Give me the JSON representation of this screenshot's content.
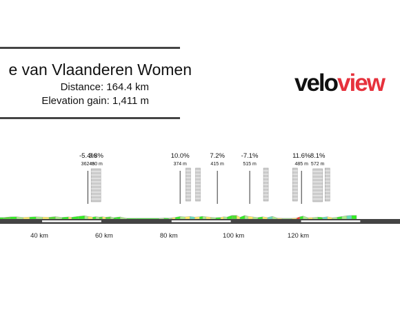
{
  "header": {
    "title": "e van Vlaanderen Women",
    "distance": "Distance: 164.4 km",
    "elevation_gain": "Elevation gain: 1,411 m"
  },
  "logo": {
    "part1": "velo",
    "part2": "view",
    "color_dark": "#111111",
    "color_red": "#e6313c"
  },
  "colors": {
    "green_bright": "#33ee22",
    "green_mid": "#55dd33",
    "green_light": "#aaee88",
    "yellow": "#ffee66",
    "teal": "#66ddbb",
    "red": "#ff3322",
    "baseline": "#444444",
    "cobble_box": "#cccccc"
  },
  "chart_data": {
    "type": "area",
    "title": "e van Vlaanderen Women",
    "xlabel": "",
    "ylabel": "",
    "xlim": [
      27,
      151
    ],
    "ylim": [
      0,
      600
    ],
    "x_ticks": [
      {
        "x": 40,
        "label": "40 km"
      },
      {
        "x": 60,
        "label": "60 km"
      },
      {
        "x": 80,
        "label": "80 km"
      },
      {
        "x": 100,
        "label": "100 km"
      },
      {
        "x": 120,
        "label": "120 km"
      }
    ],
    "segments": [
      {
        "x0": 27,
        "x1": 29,
        "y0": 20,
        "y1": 20,
        "color": "#33ee22"
      },
      {
        "x0": 29,
        "x1": 31,
        "y0": 20,
        "y1": 28,
        "color": "#55dd33"
      },
      {
        "x0": 31,
        "x1": 33,
        "y0": 28,
        "y1": 30,
        "color": "#33ee22"
      },
      {
        "x0": 33,
        "x1": 35,
        "y0": 30,
        "y1": 22,
        "color": "#aaee88"
      },
      {
        "x0": 35,
        "x1": 37,
        "y0": 22,
        "y1": 26,
        "color": "#ffee66"
      },
      {
        "x0": 37,
        "x1": 39,
        "y0": 26,
        "y1": 30,
        "color": "#33ee22"
      },
      {
        "x0": 39,
        "x1": 41,
        "y0": 30,
        "y1": 26,
        "color": "#aaee88"
      },
      {
        "x0": 41,
        "x1": 43,
        "y0": 26,
        "y1": 24,
        "color": "#ffee66"
      },
      {
        "x0": 43,
        "x1": 45,
        "y0": 24,
        "y1": 32,
        "color": "#55dd33"
      },
      {
        "x0": 45,
        "x1": 47,
        "y0": 32,
        "y1": 22,
        "color": "#aaee88"
      },
      {
        "x0": 47,
        "x1": 49,
        "y0": 22,
        "y1": 28,
        "color": "#33ee22"
      },
      {
        "x0": 49,
        "x1": 50,
        "y0": 28,
        "y1": 24,
        "color": "#ffee66"
      },
      {
        "x0": 50,
        "x1": 52,
        "y0": 24,
        "y1": 35,
        "color": "#33ee22"
      },
      {
        "x0": 52,
        "x1": 54,
        "y0": 35,
        "y1": 44,
        "color": "#33ee22"
      },
      {
        "x0": 54,
        "x1": 55,
        "y0": 44,
        "y1": 35,
        "color": "#aaee88"
      },
      {
        "x0": 55,
        "x1": 56.5,
        "y0": 35,
        "y1": 26,
        "color": "#ffee66"
      },
      {
        "x0": 56.5,
        "x1": 57.5,
        "y0": 26,
        "y1": 32,
        "color": "#33ee22"
      },
      {
        "x0": 57.5,
        "x1": 58.5,
        "y0": 32,
        "y1": 26,
        "color": "#aaee88"
      },
      {
        "x0": 58.5,
        "x1": 59.5,
        "y0": 26,
        "y1": 30,
        "color": "#55dd33"
      },
      {
        "x0": 59.5,
        "x1": 60.5,
        "y0": 30,
        "y1": 24,
        "color": "#ffee66"
      },
      {
        "x0": 60.5,
        "x1": 62,
        "y0": 24,
        "y1": 30,
        "color": "#55dd33"
      },
      {
        "x0": 62,
        "x1": 63,
        "y0": 30,
        "y1": 18,
        "color": "#aaee88"
      },
      {
        "x0": 63,
        "x1": 64,
        "y0": 18,
        "y1": 24,
        "color": "#33ee22"
      },
      {
        "x0": 64,
        "x1": 65,
        "y0": 24,
        "y1": 28,
        "color": "#33ee22"
      },
      {
        "x0": 65,
        "x1": 67,
        "y0": 28,
        "y1": 10,
        "color": "#aaee88"
      },
      {
        "x0": 67,
        "x1": 70,
        "y0": 10,
        "y1": 10,
        "color": "#33ee22"
      },
      {
        "x0": 70,
        "x1": 77,
        "y0": 10,
        "y1": 10,
        "color": "#33ee22"
      },
      {
        "x0": 77,
        "x1": 78.5,
        "y0": 10,
        "y1": 14,
        "color": "#aaee88"
      },
      {
        "x0": 78.5,
        "x1": 80,
        "y0": 14,
        "y1": 12,
        "color": "#33ee22"
      },
      {
        "x0": 80,
        "x1": 81,
        "y0": 12,
        "y1": 18,
        "color": "#aaee88"
      },
      {
        "x0": 81,
        "x1": 82,
        "y0": 18,
        "y1": 22,
        "color": "#ffee66"
      },
      {
        "x0": 82,
        "x1": 83.5,
        "y0": 22,
        "y1": 34,
        "color": "#33ee22"
      },
      {
        "x0": 83.5,
        "x1": 85,
        "y0": 34,
        "y1": 28,
        "color": "#aaee88"
      },
      {
        "x0": 85,
        "x1": 86.5,
        "y0": 28,
        "y1": 34,
        "color": "#ffee66"
      },
      {
        "x0": 86.5,
        "x1": 88,
        "y0": 34,
        "y1": 26,
        "color": "#66ddbb"
      },
      {
        "x0": 88,
        "x1": 89.5,
        "y0": 26,
        "y1": 30,
        "color": "#ffee66"
      },
      {
        "x0": 89.5,
        "x1": 90.5,
        "y0": 30,
        "y1": 36,
        "color": "#33ee22"
      },
      {
        "x0": 90.5,
        "x1": 91.5,
        "y0": 36,
        "y1": 30,
        "color": "#aaee88"
      },
      {
        "x0": 91.5,
        "x1": 93,
        "y0": 30,
        "y1": 24,
        "color": "#ffee66"
      },
      {
        "x0": 93,
        "x1": 94.5,
        "y0": 24,
        "y1": 18,
        "color": "#aaee88"
      },
      {
        "x0": 94.5,
        "x1": 96,
        "y0": 18,
        "y1": 22,
        "color": "#33ee22"
      },
      {
        "x0": 96,
        "x1": 97,
        "y0": 22,
        "y1": 30,
        "color": "#ffee66"
      },
      {
        "x0": 97,
        "x1": 98,
        "y0": 30,
        "y1": 26,
        "color": "#aaee88"
      },
      {
        "x0": 98,
        "x1": 99.5,
        "y0": 26,
        "y1": 48,
        "color": "#33ee22"
      },
      {
        "x0": 99.5,
        "x1": 101,
        "y0": 48,
        "y1": 48,
        "color": "#55dd33"
      },
      {
        "x0": 101,
        "x1": 102,
        "y0": 48,
        "y1": 24,
        "color": "#ffee66"
      },
      {
        "x0": 102,
        "x1": 103.5,
        "y0": 24,
        "y1": 48,
        "color": "#33ee22"
      },
      {
        "x0": 103.5,
        "x1": 104.5,
        "y0": 48,
        "y1": 36,
        "color": "#aaee88"
      },
      {
        "x0": 104.5,
        "x1": 106,
        "y0": 36,
        "y1": 28,
        "color": "#ffee66"
      },
      {
        "x0": 106,
        "x1": 107.5,
        "y0": 28,
        "y1": 20,
        "color": "#aaee88"
      },
      {
        "x0": 107.5,
        "x1": 109,
        "y0": 20,
        "y1": 30,
        "color": "#33ee22"
      },
      {
        "x0": 109,
        "x1": 110.5,
        "y0": 30,
        "y1": 20,
        "color": "#ffee66"
      },
      {
        "x0": 110.5,
        "x1": 112,
        "y0": 20,
        "y1": 36,
        "color": "#66ddbb"
      },
      {
        "x0": 112,
        "x1": 113.5,
        "y0": 36,
        "y1": 14,
        "color": "#aaee88"
      },
      {
        "x0": 113.5,
        "x1": 115,
        "y0": 14,
        "y1": 10,
        "color": "#ffee66"
      },
      {
        "x0": 115,
        "x1": 118,
        "y0": 10,
        "y1": 10,
        "color": "#aaee88"
      },
      {
        "x0": 118,
        "x1": 119.5,
        "y0": 10,
        "y1": 14,
        "color": "#ffee66"
      },
      {
        "x0": 119.5,
        "x1": 120.5,
        "y0": 14,
        "y1": 30,
        "color": "#ff3322"
      },
      {
        "x0": 120.5,
        "x1": 121.5,
        "y0": 30,
        "y1": 40,
        "color": "#33ee22"
      },
      {
        "x0": 121.5,
        "x1": 123,
        "y0": 40,
        "y1": 18,
        "color": "#aaee88"
      },
      {
        "x0": 123,
        "x1": 124.5,
        "y0": 18,
        "y1": 20,
        "color": "#ffee66"
      },
      {
        "x0": 124.5,
        "x1": 126,
        "y0": 20,
        "y1": 26,
        "color": "#aaee88"
      },
      {
        "x0": 126,
        "x1": 127.5,
        "y0": 26,
        "y1": 22,
        "color": "#33ee22"
      },
      {
        "x0": 127.5,
        "x1": 129,
        "y0": 22,
        "y1": 30,
        "color": "#66ddbb"
      },
      {
        "x0": 129,
        "x1": 130.5,
        "y0": 30,
        "y1": 18,
        "color": "#ffee66"
      },
      {
        "x0": 130.5,
        "x1": 132,
        "y0": 18,
        "y1": 24,
        "color": "#aaee88"
      },
      {
        "x0": 132,
        "x1": 133.5,
        "y0": 24,
        "y1": 34,
        "color": "#33ee22"
      },
      {
        "x0": 133.5,
        "x1": 135,
        "y0": 34,
        "y1": 44,
        "color": "#aaee88"
      },
      {
        "x0": 135,
        "x1": 136.5,
        "y0": 44,
        "y1": 48,
        "color": "#66ddbb"
      },
      {
        "x0": 136.5,
        "x1": 138,
        "y0": 48,
        "y1": 48,
        "color": "#33ee22"
      }
    ],
    "annotations": [
      {
        "x": 55,
        "grade": "-5.4%",
        "elevation": "362 m",
        "line_top": 248,
        "cobbled": false
      },
      {
        "x": 57.5,
        "grade": "3.8%",
        "elevation": "430 m",
        "line_top": 248,
        "cobbled": true
      },
      {
        "x": 83.5,
        "grade": "10.0%",
        "elevation": "374 m",
        "line_top": 248,
        "cobbled": false
      },
      {
        "x": 86,
        "grade": "",
        "elevation": "",
        "line_top": 245,
        "cobbled": true
      },
      {
        "x": 89,
        "grade": "",
        "elevation": "",
        "line_top": 245,
        "cobbled": true
      },
      {
        "x": 95,
        "grade": "7.2%",
        "elevation": "415 m",
        "line_top": 248,
        "cobbled": false
      },
      {
        "x": 105,
        "grade": "-7.1%",
        "elevation": "515 m",
        "line_top": 248,
        "cobbled": false
      },
      {
        "x": 110,
        "grade": "",
        "elevation": "",
        "line_top": 245,
        "cobbled": true
      },
      {
        "x": 119,
        "grade": "",
        "elevation": "",
        "line_top": 245,
        "cobbled": true
      },
      {
        "x": 121,
        "grade": "11.6%",
        "elevation": "485 m",
        "line_top": 248,
        "cobbled": false
      },
      {
        "x": 126,
        "grade": "8.1%",
        "elevation": "572 m",
        "line_top": 248,
        "cobbled": true
      },
      {
        "x": 129,
        "grade": "",
        "elevation": "",
        "line_top": 245,
        "cobbled": true
      }
    ]
  }
}
